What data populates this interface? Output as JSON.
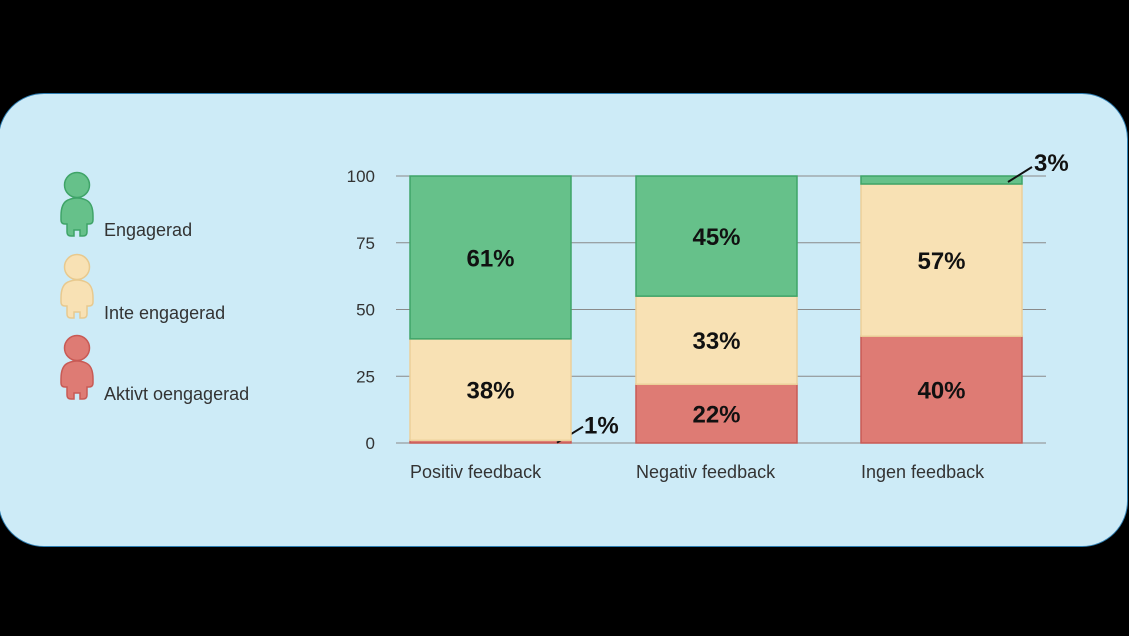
{
  "chart_data": {
    "type": "bar",
    "stacked": true,
    "categories": [
      "Positiv feedback",
      "Negativ feedback",
      "Ingen feedback"
    ],
    "series": [
      {
        "name": "Aktivt oengagerad",
        "color": "#de7b74",
        "values": [
          1,
          22,
          40
        ],
        "labels": [
          "1%",
          "22%",
          "40%"
        ]
      },
      {
        "name": "Inte engagerad",
        "color": "#f8e1b4",
        "values": [
          38,
          33,
          57
        ],
        "labels": [
          "38%",
          "33%",
          "57%"
        ]
      },
      {
        "name": "Engagerad",
        "color": "#66c18a",
        "values": [
          61,
          45,
          3
        ],
        "labels": [
          "61%",
          "45%",
          "3%"
        ]
      }
    ],
    "yticks": [
      0,
      25,
      50,
      75,
      100
    ],
    "ylim": [
      0,
      100
    ],
    "grid": true,
    "legend_position": "left",
    "title": "",
    "xlabel": "",
    "ylabel": ""
  },
  "legend": [
    {
      "label": "Engagerad",
      "color": "#66c18a",
      "stroke": "#3fa468",
      "icon": "person-icon"
    },
    {
      "label": "Inte engagerad",
      "color": "#f8e1b4",
      "stroke": "#e8c98e",
      "icon": "person-icon"
    },
    {
      "label": "Aktivt oengagerad",
      "color": "#de7b74",
      "stroke": "#c85a55",
      "icon": "person-icon"
    }
  ]
}
